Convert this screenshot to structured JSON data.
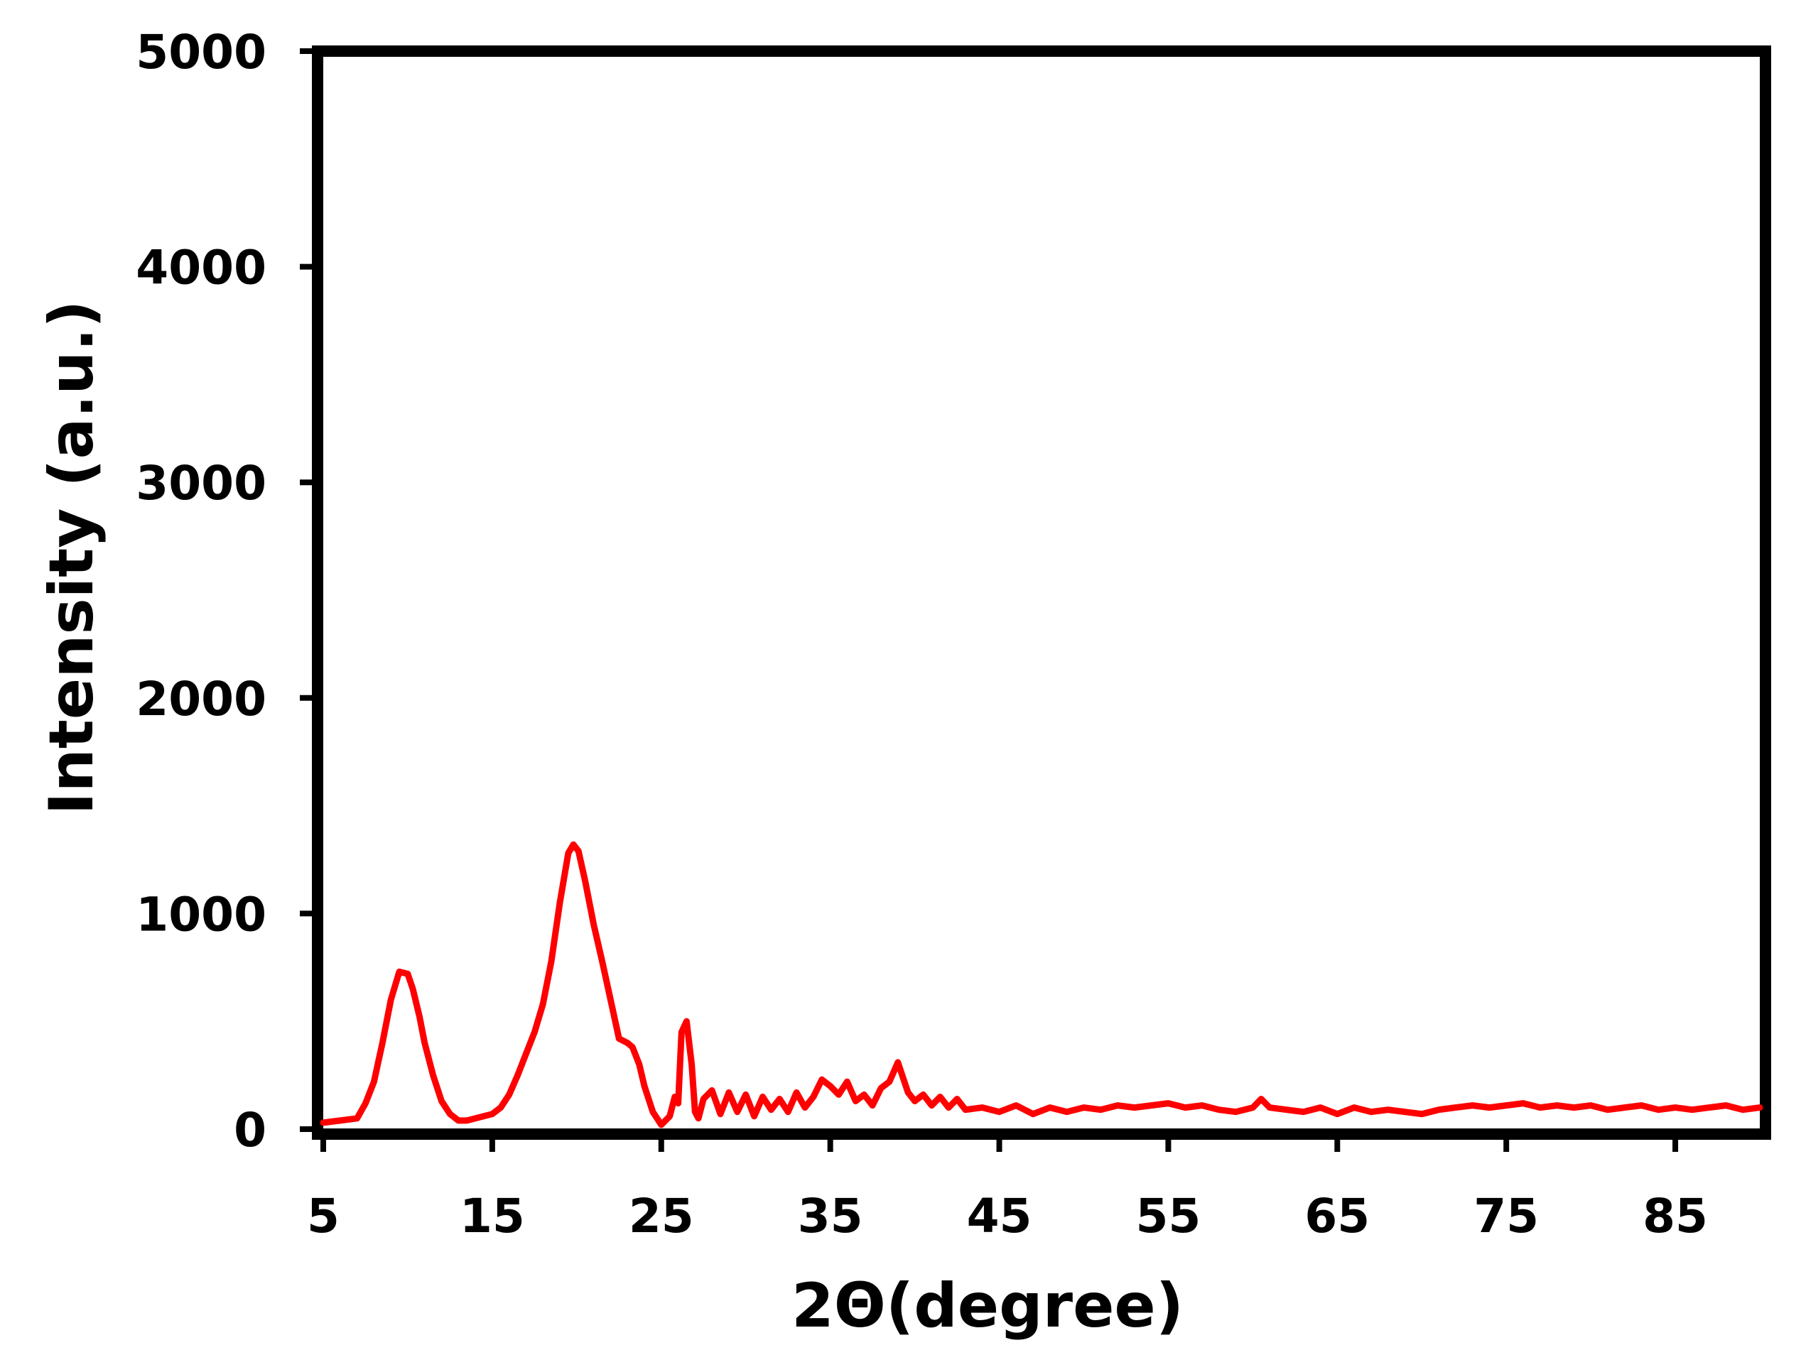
{
  "chart_data": {
    "type": "line",
    "title": "",
    "xlabel": "2Θ(degree)",
    "ylabel": "Intensity (a.u.)",
    "xlim": [
      5,
      90
    ],
    "ylim": [
      0,
      5000
    ],
    "x_ticks": [
      "5",
      "15",
      "25",
      "35",
      "45",
      "55",
      "65",
      "75",
      "85"
    ],
    "y_ticks": [
      "0",
      "1000",
      "2000",
      "3000",
      "4000",
      "5000"
    ],
    "grid": false,
    "legend": "none",
    "series": [
      {
        "color": "#ff0000",
        "x": [
          5,
          6,
          7,
          7.5,
          8,
          8.5,
          9,
          9.5,
          10,
          10.3,
          10.7,
          11,
          11.5,
          12,
          12.5,
          13,
          13.5,
          14,
          15,
          15.5,
          16,
          16.5,
          17,
          17.5,
          18,
          18.5,
          19,
          19.5,
          19.8,
          20.1,
          20.5,
          21,
          21.5,
          22,
          22.5,
          23,
          23.3,
          23.7,
          24,
          24.5,
          25,
          25.5,
          25.8,
          26,
          26.2,
          26.5,
          26.8,
          27,
          27.2,
          27.5,
          28,
          28.5,
          29,
          29.5,
          30,
          30.5,
          31,
          31.5,
          32,
          32.5,
          33,
          33.5,
          34,
          34.5,
          35,
          35.5,
          36,
          36.5,
          37,
          37.5,
          38,
          38.5,
          39,
          39.3,
          39.6,
          40,
          40.5,
          41,
          41.5,
          42,
          42.5,
          43,
          44,
          45,
          46,
          47,
          48,
          49,
          50,
          51,
          52,
          53,
          54,
          55,
          56,
          57,
          58,
          59,
          60,
          60.5,
          61,
          62,
          63,
          64,
          65,
          66,
          67,
          68,
          69,
          70,
          71,
          72,
          73,
          74,
          75,
          76,
          77,
          78,
          79,
          80,
          81,
          82,
          83,
          84,
          85,
          86,
          87,
          88,
          89,
          90
        ],
        "y": [
          30,
          40,
          50,
          120,
          220,
          400,
          600,
          730,
          720,
          650,
          520,
          400,
          250,
          130,
          70,
          40,
          40,
          50,
          70,
          100,
          160,
          250,
          350,
          450,
          580,
          780,
          1050,
          1280,
          1320,
          1290,
          1150,
          950,
          780,
          600,
          420,
          400,
          380,
          300,
          200,
          80,
          20,
          60,
          150,
          120,
          450,
          500,
          300,
          80,
          50,
          140,
          180,
          70,
          170,
          80,
          160,
          60,
          150,
          90,
          140,
          80,
          170,
          100,
          150,
          230,
          200,
          160,
          220,
          130,
          160,
          110,
          190,
          220,
          310,
          240,
          170,
          130,
          160,
          110,
          150,
          100,
          140,
          90,
          100,
          80,
          110,
          70,
          100,
          80,
          100,
          90,
          110,
          100,
          110,
          120,
          100,
          110,
          90,
          80,
          100,
          140,
          100,
          90,
          80,
          100,
          70,
          100,
          80,
          90,
          80,
          70,
          90,
          100,
          110,
          100,
          110,
          120,
          100,
          110,
          100,
          110,
          90,
          100,
          110,
          90,
          100,
          90,
          100,
          110,
          90,
          100
        ]
      }
    ]
  }
}
